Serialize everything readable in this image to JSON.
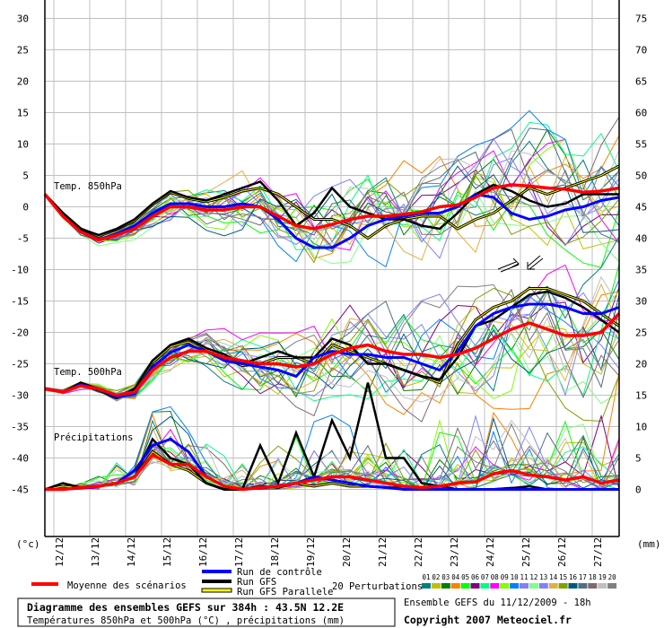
{
  "chart_data": {
    "type": "line",
    "title": "Diagramme des ensembles GEFS sur 384h : 43.5N 12.2E",
    "subtitle": "Températures 850hPa et 500hPa (°C) , précipitations (mm)",
    "run_info": "Ensemble GEFS du 11/12/2009 - 18h",
    "copyright": "Copyright 2007 Meteociel.fr",
    "left_axis": {
      "unit": "(°c)",
      "range": [
        -45,
        30
      ],
      "ticks": [
        "30",
        "25",
        "20",
        "15",
        "10",
        "5",
        "0",
        "-5",
        "-10",
        "-15",
        "-20",
        "-25",
        "-30",
        "-35",
        "-40",
        "-45"
      ]
    },
    "right_axis": {
      "unit": "(mm)",
      "range": [
        0,
        75
      ],
      "ticks": [
        "75",
        "70",
        "65",
        "60",
        "55",
        "50",
        "45",
        "40",
        "35",
        "30",
        "25",
        "20",
        "15",
        "10",
        "5",
        "0"
      ]
    },
    "x_ticks": [
      "12/12",
      "13/12",
      "14/12",
      "15/12",
      "16/12",
      "17/12",
      "18/12",
      "19/12",
      "20/12",
      "21/12",
      "22/12",
      "23/12",
      "24/12",
      "25/12",
      "26/12",
      "27/12"
    ],
    "x_step_hours": 12,
    "panel_labels": {
      "t850": "Temp. 850hPa",
      "t500": "Temp. 500hPa",
      "precip": "Précipitations"
    },
    "legend": {
      "mean": "Moyenne des scénarios",
      "control": "Run de contrôle",
      "gfs": "Run GFS",
      "gfs_parallel": "Run GFS Parallele",
      "perturbations": "20 Perturbations",
      "perturbation_ids": [
        "01",
        "02",
        "03",
        "04",
        "05",
        "06",
        "07",
        "08",
        "09",
        "10",
        "11",
        "12",
        "13",
        "14",
        "15",
        "16",
        "17",
        "18",
        "19",
        "20"
      ],
      "perturbation_colors": [
        "#008080",
        "#c0c000",
        "#008000",
        "#ff8000",
        "#00ff00",
        "#800080",
        "#00ff80",
        "#ff00ff",
        "#80ff00",
        "#0080ff",
        "#8080ff",
        "#80ff80",
        "#8080ff",
        "#e0b040",
        "#80a000",
        "#005880",
        "#507080",
        "#806870",
        "#c0c0c0",
        "#808080"
      ]
    },
    "colors": {
      "mean": "#ff0000",
      "control": "#0000ff",
      "gfs": "#000000",
      "parallel": "#ffff00",
      "grid": "#c0c0c0"
    },
    "series": {
      "t850": {
        "mean": [
          2,
          -1.5,
          -4,
          -5.3,
          -4.5,
          -3.5,
          -1.5,
          0,
          0,
          -0.5,
          -0.5,
          0,
          0,
          -1.5,
          -3,
          -3.5,
          -2.8,
          -2,
          -1.5,
          -1.5,
          -1.2,
          -0.8,
          0,
          0.3,
          1.5,
          3,
          3.5,
          3.3,
          3,
          2.8,
          2.3,
          2.5,
          3
        ],
        "control": [
          2,
          -1.5,
          -4,
          -5.2,
          -4.3,
          -3,
          -1,
          0.5,
          0.5,
          0,
          0,
          0.5,
          0,
          -2,
          -5,
          -6.5,
          -6.5,
          -5,
          -3,
          -2,
          -1.5,
          -1,
          -1,
          0,
          2,
          1.5,
          -1,
          -2,
          -1.5,
          -0.5,
          0,
          1,
          1.5
        ],
        "gfs": [
          2,
          -1,
          -3.5,
          -4.5,
          -3.5,
          -2,
          0.5,
          2.5,
          1.5,
          1,
          2,
          3,
          4,
          1,
          -3,
          -1,
          3,
          0,
          -1,
          -2,
          -2,
          -3,
          -3.5,
          -1,
          2,
          3.5,
          2.5,
          1,
          0,
          0.5,
          2,
          2,
          2
        ],
        "parallel": [
          2,
          -1,
          -3.5,
          -4.7,
          -3.6,
          -2.2,
          0.3,
          2.3,
          1.3,
          0.8,
          1.5,
          2.5,
          3,
          2,
          0,
          -2,
          -2,
          -3,
          -5,
          -3,
          -2,
          -1.5,
          -1.5,
          -3.5,
          -2,
          -1,
          1,
          3,
          2,
          3,
          4,
          5,
          6.5
        ],
        "spread": [
          0.2,
          0.4,
          0.6,
          0.8,
          1,
          1.3,
          1.6,
          2,
          2.3,
          2.6,
          3,
          3.3,
          3.6,
          4,
          4.3,
          4.6,
          5,
          5,
          5.2,
          5.4,
          5.6,
          5.8,
          6,
          6,
          6.2,
          6.4,
          6.6,
          6.8,
          7,
          7,
          7.2,
          7.2,
          7.4
        ]
      },
      "t500": {
        "mean": [
          -29,
          -29.5,
          -28.5,
          -29,
          -30,
          -29.5,
          -26,
          -24,
          -23,
          -23,
          -24,
          -24.5,
          -25,
          -25,
          -25.5,
          -25,
          -23.5,
          -22.5,
          -22,
          -23,
          -23.5,
          -23.5,
          -24,
          -23.5,
          -22.5,
          -21,
          -19.5,
          -18.5,
          -19.5,
          -20.5,
          -20.5,
          -20,
          -17
        ],
        "control": [
          -29,
          -29.5,
          -28.3,
          -29,
          -30.3,
          -29.8,
          -25.5,
          -23.2,
          -22,
          -23,
          -24.5,
          -25,
          -25.5,
          -26,
          -27,
          -24,
          -23,
          -23.5,
          -23.5,
          -24,
          -24,
          -25,
          -26,
          -23,
          -19,
          -17,
          -16,
          -15.5,
          -15.5,
          -16,
          -17,
          -17,
          -16
        ],
        "gfs": [
          -29,
          -29.5,
          -28,
          -29,
          -30.5,
          -29,
          -24.5,
          -22,
          -21,
          -22.5,
          -23.5,
          -25,
          -24,
          -23,
          -24,
          -24,
          -21,
          -22,
          -25,
          -25,
          -26,
          -27,
          -27.5,
          -24,
          -19,
          -18,
          -16,
          -14,
          -13.5,
          -14.5,
          -16,
          -18,
          -20
        ],
        "parallel": [
          -29,
          -29.5,
          -28.2,
          -29.2,
          -30.5,
          -29.2,
          -24.8,
          -22.3,
          -21.5,
          -23,
          -24,
          -25.3,
          -25,
          -24,
          -24,
          -25,
          -22,
          -23,
          -24,
          -25,
          -26,
          -27,
          -28,
          -22,
          -18,
          -16,
          -15,
          -13,
          -13,
          -14,
          -15,
          -17,
          -19
        ],
        "spread": [
          0.3,
          0.4,
          0.5,
          0.6,
          0.8,
          1,
          1.3,
          1.6,
          2,
          2.4,
          2.8,
          3.2,
          3.6,
          4,
          4.4,
          4.8,
          5,
          5.2,
          5.4,
          5.6,
          5.8,
          6,
          6.2,
          6.4,
          6.6,
          6.8,
          7,
          7.2,
          7.4,
          7.6,
          7.8,
          8,
          8
        ]
      },
      "precip_mm": {
        "mean": [
          0,
          0,
          0.3,
          0.5,
          1,
          2,
          5.5,
          4,
          4,
          2,
          0.5,
          0,
          0.3,
          0.5,
          1,
          1.5,
          2,
          2,
          1.5,
          1,
          0.5,
          0.3,
          0.5,
          1,
          1.2,
          2.5,
          3,
          2.3,
          2,
          1.5,
          2,
          1,
          1.5
        ],
        "control": [
          0,
          0,
          0.2,
          0.5,
          1,
          3,
          7,
          8,
          6,
          2,
          0.5,
          0,
          0.2,
          0.5,
          1,
          2,
          1.5,
          1,
          0.5,
          0.3,
          0,
          0,
          0,
          0,
          0,
          0,
          0,
          0,
          0,
          0,
          0,
          0,
          0
        ],
        "gfs": [
          0,
          1,
          0.3,
          0.5,
          1,
          2,
          8,
          5,
          4,
          1,
          0,
          0,
          7,
          1,
          9,
          2,
          11,
          5,
          17,
          5,
          5,
          1,
          0.5,
          0,
          0,
          0,
          0.2,
          0.5,
          0,
          0,
          0,
          0,
          0
        ],
        "parallel": [
          0,
          0.5,
          0.3,
          0.5,
          1,
          2,
          6,
          4,
          3,
          1,
          0,
          0,
          0.5,
          0.3,
          1,
          0.5,
          1,
          0.5,
          0.5,
          0.3,
          0.2,
          0,
          0,
          0,
          0,
          0,
          0.2,
          0,
          0,
          0,
          0,
          0,
          0
        ],
        "spread": [
          0,
          0,
          0.5,
          1,
          2,
          3,
          4,
          3,
          2,
          1.5,
          1,
          1.5,
          2,
          2.5,
          3,
          3.5,
          3.5,
          3,
          3,
          3,
          3.5,
          3.5,
          4,
          4,
          4.5,
          5,
          5,
          5,
          5,
          5,
          5,
          5,
          5
        ]
      }
    }
  }
}
